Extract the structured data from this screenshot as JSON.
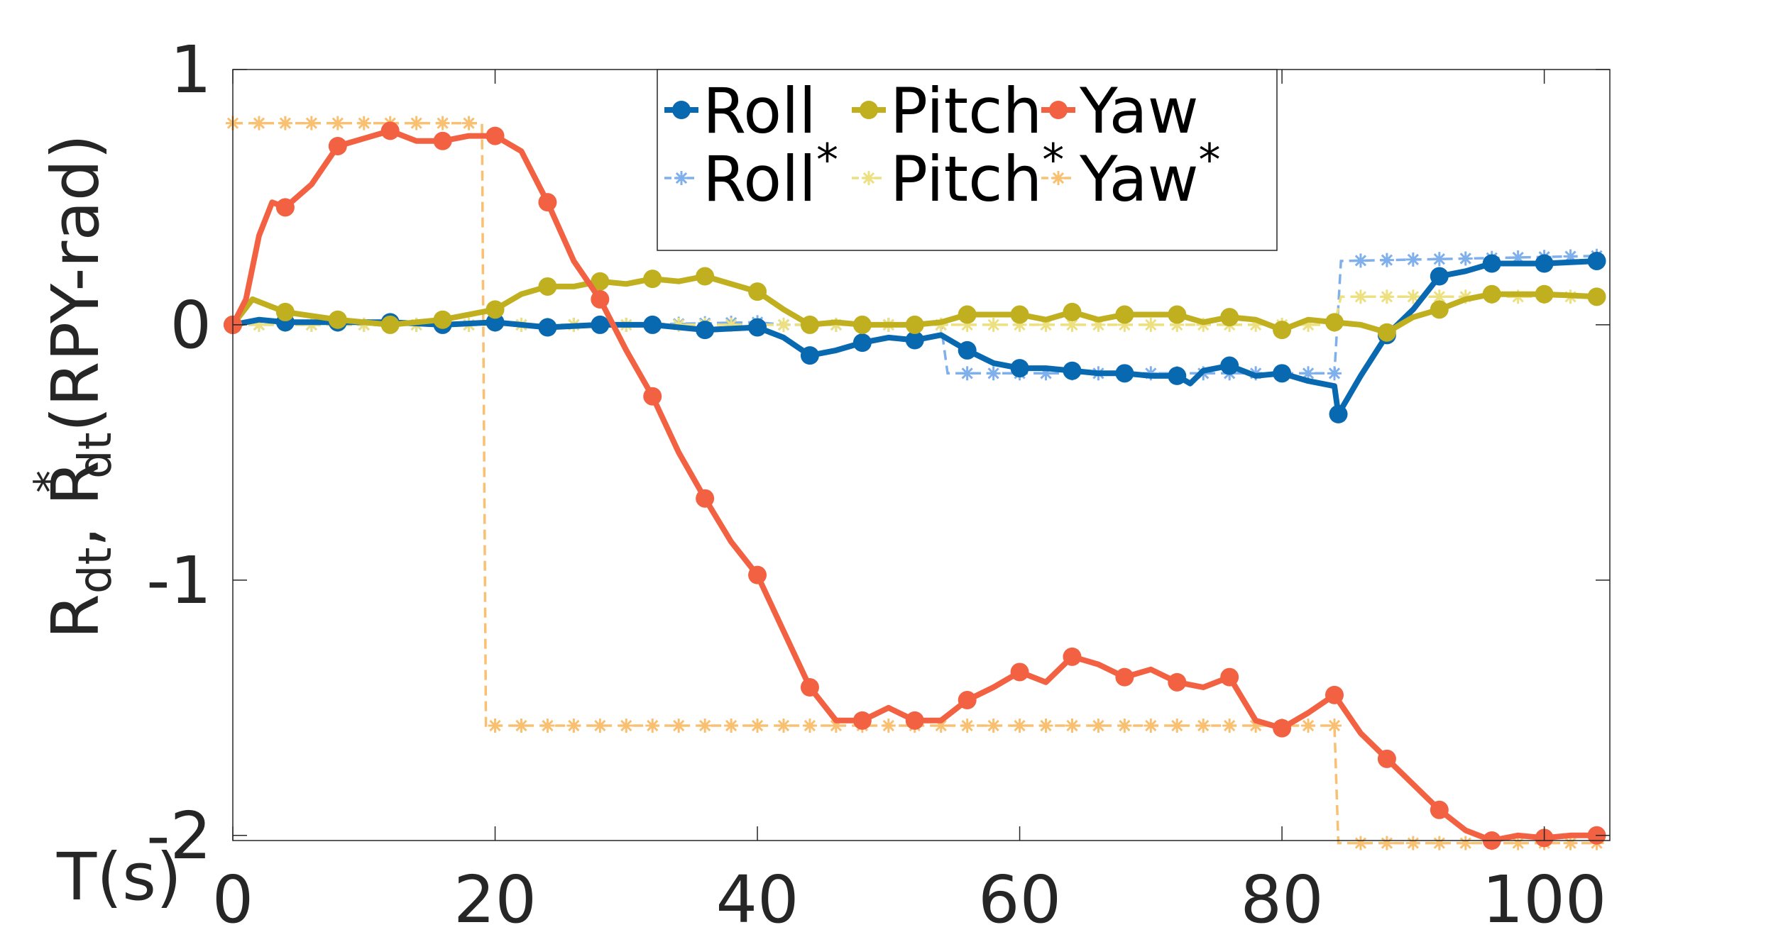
{
  "chart_data": {
    "type": "line",
    "xlabel": "T(s)",
    "ylabel": {
      "parts": [
        "R",
        "dt",
        ", R",
        "*",
        "dt",
        "(RPY-rad)"
      ]
    },
    "xlim": [
      0,
      105
    ],
    "ylim": [
      -2.02,
      1
    ],
    "x_ticks": [
      0,
      20,
      40,
      60,
      80,
      100
    ],
    "x_tick_labels": [
      "0",
      "20",
      "40",
      "60",
      "80",
      "100"
    ],
    "y_ticks": [
      1,
      0,
      -1,
      -2
    ],
    "y_tick_labels": [
      "1",
      "0",
      "-1",
      "-2"
    ],
    "grid": false,
    "legend": {
      "placement": "top-center",
      "rows": [
        [
          {
            "label": "Roll",
            "star": ""
          },
          {
            "label": "Pitch",
            "star": ""
          },
          {
            "label": "Yaw",
            "star": ""
          }
        ],
        [
          {
            "label": "Roll",
            "star": "*"
          },
          {
            "label": "Pitch",
            "star": "*"
          },
          {
            "label": "Yaw",
            "star": "*"
          }
        ]
      ]
    },
    "series": [
      {
        "name": "Roll",
        "color": "#0868b0",
        "style": "solid-dot",
        "points": [
          [
            0,
            0
          ],
          [
            2,
            0.02
          ],
          [
            4,
            0.01
          ],
          [
            8,
            0.01
          ],
          [
            12,
            0.01
          ],
          [
            16,
            0
          ],
          [
            20,
            0.01
          ],
          [
            24,
            -0.01
          ],
          [
            28,
            0
          ],
          [
            32,
            0
          ],
          [
            36,
            -0.02
          ],
          [
            40,
            -0.01
          ],
          [
            42,
            -0.05
          ],
          [
            44,
            -0.12
          ],
          [
            46,
            -0.1
          ],
          [
            48,
            -0.07
          ],
          [
            50,
            -0.05
          ],
          [
            52,
            -0.06
          ],
          [
            54,
            -0.04
          ],
          [
            56,
            -0.1
          ],
          [
            58,
            -0.15
          ],
          [
            60,
            -0.17
          ],
          [
            62,
            -0.17
          ],
          [
            64,
            -0.18
          ],
          [
            66,
            -0.19
          ],
          [
            68,
            -0.19
          ],
          [
            70,
            -0.2
          ],
          [
            72,
            -0.2
          ],
          [
            73,
            -0.23
          ],
          [
            74,
            -0.18
          ],
          [
            76,
            -0.16
          ],
          [
            78,
            -0.2
          ],
          [
            80,
            -0.19
          ],
          [
            82,
            -0.22
          ],
          [
            84,
            -0.24
          ],
          [
            84.3,
            -0.35
          ],
          [
            86,
            -0.2
          ],
          [
            88,
            -0.04
          ],
          [
            90,
            0.06
          ],
          [
            92,
            0.19
          ],
          [
            94,
            0.21
          ],
          [
            96,
            0.24
          ],
          [
            100,
            0.24
          ],
          [
            104,
            0.25
          ]
        ],
        "markers_x": [
          0,
          4,
          8,
          12,
          16,
          20,
          24,
          28,
          32,
          36,
          40,
          44,
          48,
          52,
          56,
          60,
          64,
          68,
          72,
          76,
          80,
          84.3,
          88,
          92,
          96,
          100,
          104
        ]
      },
      {
        "name": "Pitch",
        "color": "#c0b020",
        "style": "solid-dot",
        "points": [
          [
            0,
            0
          ],
          [
            1.5,
            0.1
          ],
          [
            4,
            0.05
          ],
          [
            8,
            0.02
          ],
          [
            12,
            0
          ],
          [
            16,
            0.02
          ],
          [
            20,
            0.06
          ],
          [
            22,
            0.12
          ],
          [
            24,
            0.15
          ],
          [
            26,
            0.15
          ],
          [
            28,
            0.17
          ],
          [
            30,
            0.16
          ],
          [
            32,
            0.18
          ],
          [
            34,
            0.17
          ],
          [
            36,
            0.19
          ],
          [
            38,
            0.16
          ],
          [
            40,
            0.13
          ],
          [
            42,
            0.06
          ],
          [
            44,
            0
          ],
          [
            46,
            0.01
          ],
          [
            48,
            0
          ],
          [
            52,
            0
          ],
          [
            54,
            0.01
          ],
          [
            56,
            0.04
          ],
          [
            60,
            0.04
          ],
          [
            62,
            0.02
          ],
          [
            64,
            0.05
          ],
          [
            66,
            0.02
          ],
          [
            68,
            0.04
          ],
          [
            72,
            0.04
          ],
          [
            74,
            0.01
          ],
          [
            76,
            0.03
          ],
          [
            78,
            0.02
          ],
          [
            80,
            -0.02
          ],
          [
            82,
            0.02
          ],
          [
            84,
            0.01
          ],
          [
            86,
            0
          ],
          [
            88,
            -0.03
          ],
          [
            90,
            0.03
          ],
          [
            92,
            0.06
          ],
          [
            94,
            0.1
          ],
          [
            96,
            0.12
          ],
          [
            100,
            0.12
          ],
          [
            104,
            0.11
          ]
        ],
        "markers_x": [
          0,
          4,
          8,
          12,
          16,
          20,
          24,
          28,
          32,
          36,
          40,
          44,
          48,
          52,
          56,
          60,
          64,
          68,
          72,
          76,
          80,
          84,
          88,
          92,
          96,
          100,
          104
        ]
      },
      {
        "name": "Yaw",
        "color": "#f26242",
        "style": "solid-dot",
        "points": [
          [
            0,
            0
          ],
          [
            1,
            0.1
          ],
          [
            2,
            0.35
          ],
          [
            3,
            0.48
          ],
          [
            4,
            0.46
          ],
          [
            6,
            0.55
          ],
          [
            8,
            0.7
          ],
          [
            10,
            0.73
          ],
          [
            12,
            0.76
          ],
          [
            14,
            0.72
          ],
          [
            16,
            0.72
          ],
          [
            18,
            0.74
          ],
          [
            20,
            0.74
          ],
          [
            22,
            0.68
          ],
          [
            24,
            0.48
          ],
          [
            26,
            0.25
          ],
          [
            28,
            0.1
          ],
          [
            30,
            -0.1
          ],
          [
            32,
            -0.28
          ],
          [
            34,
            -0.5
          ],
          [
            36,
            -0.68
          ],
          [
            38,
            -0.85
          ],
          [
            40,
            -0.98
          ],
          [
            42,
            -1.2
          ],
          [
            44,
            -1.42
          ],
          [
            46,
            -1.55
          ],
          [
            48,
            -1.55
          ],
          [
            50,
            -1.5
          ],
          [
            52,
            -1.55
          ],
          [
            54,
            -1.55
          ],
          [
            56,
            -1.47
          ],
          [
            58,
            -1.42
          ],
          [
            60,
            -1.36
          ],
          [
            62,
            -1.4
          ],
          [
            64,
            -1.3
          ],
          [
            66,
            -1.33
          ],
          [
            68,
            -1.38
          ],
          [
            70,
            -1.35
          ],
          [
            72,
            -1.4
          ],
          [
            74,
            -1.42
          ],
          [
            76,
            -1.38
          ],
          [
            78,
            -1.55
          ],
          [
            80,
            -1.58
          ],
          [
            82,
            -1.52
          ],
          [
            84,
            -1.45
          ],
          [
            86,
            -1.6
          ],
          [
            88,
            -1.7
          ],
          [
            90,
            -1.8
          ],
          [
            92,
            -1.9
          ],
          [
            94,
            -1.98
          ],
          [
            96,
            -2.02
          ],
          [
            98,
            -2.0
          ],
          [
            100,
            -2.01
          ],
          [
            102,
            -2.0
          ],
          [
            104,
            -2.0
          ]
        ],
        "markers_x": [
          0,
          4,
          8,
          12,
          16,
          20,
          24,
          28,
          32,
          36,
          40,
          44,
          48,
          52,
          56,
          60,
          64,
          68,
          72,
          76,
          80,
          84,
          88,
          92,
          96,
          100,
          104
        ]
      },
      {
        "name": "Roll*",
        "color": "#7fb0ec",
        "style": "dashed-star",
        "points": [
          [
            0,
            0
          ],
          [
            30,
            0
          ],
          [
            40,
            0.01
          ],
          [
            42,
            0
          ],
          [
            54,
            0
          ],
          [
            54.5,
            -0.19
          ],
          [
            60,
            -0.19
          ],
          [
            84,
            -0.19
          ],
          [
            84.5,
            0.25
          ],
          [
            104,
            0.27
          ]
        ],
        "markers_step": 2
      },
      {
        "name": "Pitch*",
        "color": "#ece080",
        "style": "dashed-star",
        "points": [
          [
            0,
            0
          ],
          [
            84,
            0
          ],
          [
            84.5,
            0.11
          ],
          [
            104,
            0.11
          ]
        ],
        "markers_step": 2
      },
      {
        "name": "Yaw*",
        "color": "#f8c070",
        "style": "dashed-star",
        "points": [
          [
            0,
            0.79
          ],
          [
            19,
            0.79
          ],
          [
            19.3,
            -1.57
          ],
          [
            84,
            -1.57
          ],
          [
            84.3,
            -2.03
          ],
          [
            104,
            -2.03
          ]
        ],
        "markers_step": 2
      }
    ]
  }
}
